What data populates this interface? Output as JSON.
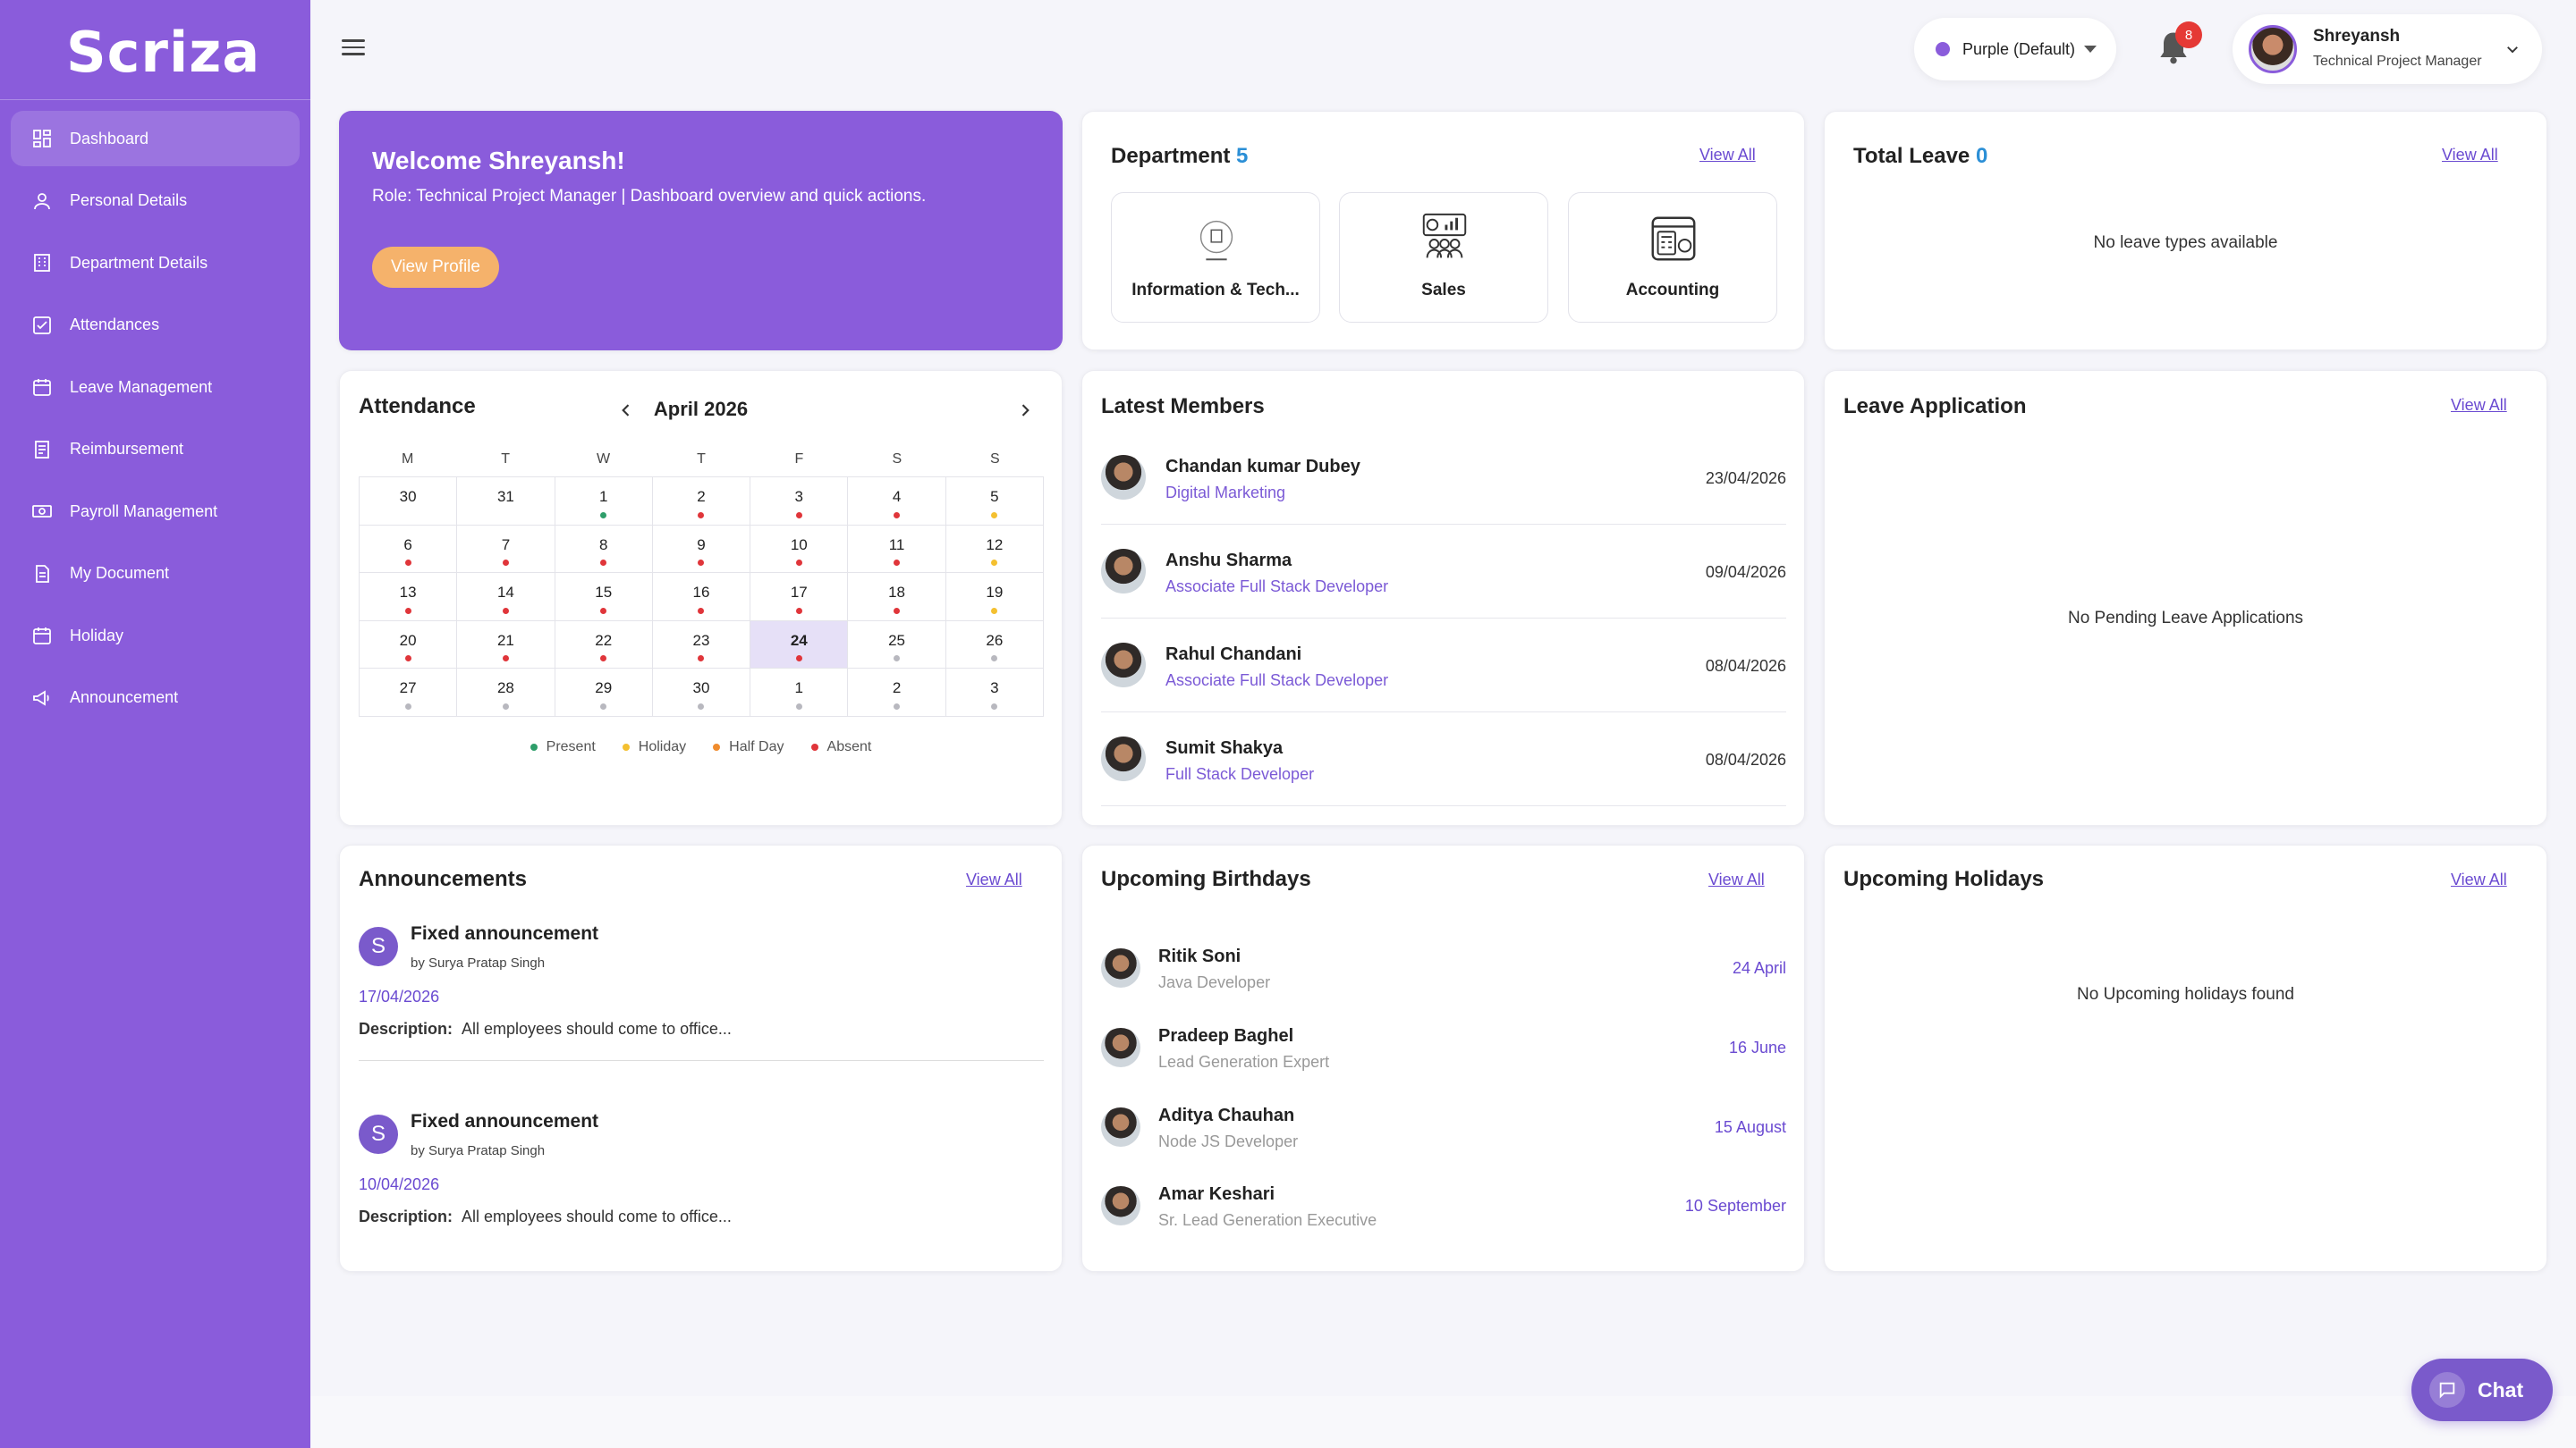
{
  "brand": {
    "logo": "Scriza"
  },
  "sidebar": {
    "items": [
      {
        "label": "Dashboard",
        "icon": "dashboard-icon"
      },
      {
        "label": "Personal Details",
        "icon": "user-icon"
      },
      {
        "label": "Department Details",
        "icon": "building-icon"
      },
      {
        "label": "Attendances",
        "icon": "checkbox-icon"
      },
      {
        "label": "Leave Management",
        "icon": "calendar-icon"
      },
      {
        "label": "Reimbursement",
        "icon": "receipt-icon"
      },
      {
        "label": "Payroll Management",
        "icon": "payroll-icon"
      },
      {
        "label": "My Document",
        "icon": "document-icon"
      },
      {
        "label": "Holiday",
        "icon": "calendar-icon"
      },
      {
        "label": "Announcement",
        "icon": "megaphone-icon"
      }
    ]
  },
  "header": {
    "theme_label": "Purple (Default)",
    "notification_count": "8",
    "user_name": "Shreyansh",
    "user_role": "Technical Project Manager"
  },
  "welcome": {
    "heading": "Welcome Shreyansh!",
    "role_line": "Role: Technical Project Manager | Dashboard overview and quick actions.",
    "button": "View Profile"
  },
  "department": {
    "title": "Department",
    "count": "5",
    "view_all": "View All",
    "items": [
      "Information & Tech...",
      "Sales",
      "Accounting"
    ]
  },
  "total_leave": {
    "title": "Total Leave",
    "count": "0",
    "view_all": "View All",
    "empty": "No leave types available"
  },
  "attendance": {
    "title": "Attendance",
    "month": "April 2026",
    "weekdays": [
      "M",
      "T",
      "W",
      "T",
      "F",
      "S",
      "S"
    ],
    "days": [
      {
        "d": "30",
        "s": ""
      },
      {
        "d": "31",
        "s": ""
      },
      {
        "d": "1",
        "s": "present"
      },
      {
        "d": "2",
        "s": "absent"
      },
      {
        "d": "3",
        "s": "absent"
      },
      {
        "d": "4",
        "s": "absent"
      },
      {
        "d": "5",
        "s": "holiday"
      },
      {
        "d": "6",
        "s": "absent"
      },
      {
        "d": "7",
        "s": "absent"
      },
      {
        "d": "8",
        "s": "absent"
      },
      {
        "d": "9",
        "s": "absent"
      },
      {
        "d": "10",
        "s": "absent"
      },
      {
        "d": "11",
        "s": "absent"
      },
      {
        "d": "12",
        "s": "holiday"
      },
      {
        "d": "13",
        "s": "absent"
      },
      {
        "d": "14",
        "s": "absent"
      },
      {
        "d": "15",
        "s": "absent"
      },
      {
        "d": "16",
        "s": "absent"
      },
      {
        "d": "17",
        "s": "absent"
      },
      {
        "d": "18",
        "s": "absent"
      },
      {
        "d": "19",
        "s": "holiday"
      },
      {
        "d": "20",
        "s": "absent"
      },
      {
        "d": "21",
        "s": "absent"
      },
      {
        "d": "22",
        "s": "absent"
      },
      {
        "d": "23",
        "s": "absent"
      },
      {
        "d": "24",
        "s": "absent",
        "today": true
      },
      {
        "d": "25",
        "s": "none"
      },
      {
        "d": "26",
        "s": "none"
      },
      {
        "d": "27",
        "s": "none"
      },
      {
        "d": "28",
        "s": "none"
      },
      {
        "d": "29",
        "s": "none"
      },
      {
        "d": "30",
        "s": "none"
      },
      {
        "d": "1",
        "s": "none"
      },
      {
        "d": "2",
        "s": "none"
      },
      {
        "d": "3",
        "s": "none"
      }
    ],
    "legend": [
      {
        "label": "Present",
        "color": "#2e9e6a"
      },
      {
        "label": "Holiday",
        "color": "#f4c030"
      },
      {
        "label": "Half Day",
        "color": "#f08c2e"
      },
      {
        "label": "Absent",
        "color": "#e0353a"
      }
    ],
    "dot_colors": {
      "present": "#2e9e6a",
      "holiday": "#f4c030",
      "absent": "#e0353a",
      "none": "#b8b8bf"
    }
  },
  "latest_members": {
    "title": "Latest Members",
    "items": [
      {
        "name": "Chandan kumar Dubey",
        "role": "Digital Marketing",
        "date": "23/04/2026"
      },
      {
        "name": "Anshu Sharma",
        "role": "Associate Full Stack Developer",
        "date": "09/04/2026"
      },
      {
        "name": "Rahul Chandani",
        "role": "Associate Full Stack Developer",
        "date": "08/04/2026"
      },
      {
        "name": "Sumit Shakya",
        "role": "Full Stack Developer",
        "date": "08/04/2026"
      }
    ]
  },
  "leave_application": {
    "title": "Leave Application",
    "view_all": "View All",
    "empty": "No Pending Leave Applications"
  },
  "announcements": {
    "title": "Announcements",
    "view_all": "View All",
    "items": [
      {
        "avatar": "S",
        "title": "Fixed announcement",
        "by": "by Surya Pratap Singh",
        "date": "17/04/2026",
        "desc_label": "Description:",
        "desc": "All employees should come to office..."
      },
      {
        "avatar": "S",
        "title": "Fixed announcement",
        "by": "by Surya Pratap Singh",
        "date": "10/04/2026",
        "desc_label": "Description:",
        "desc": "All employees should come to office..."
      }
    ]
  },
  "birthdays": {
    "title": "Upcoming Birthdays",
    "view_all": "View All",
    "items": [
      {
        "name": "Ritik Soni",
        "role": "Java Developer",
        "date": "24 April"
      },
      {
        "name": "Pradeep Baghel",
        "role": "Lead Generation Expert",
        "date": "16 June"
      },
      {
        "name": "Aditya Chauhan",
        "role": "Node JS Developer",
        "date": "15 August"
      },
      {
        "name": "Amar Keshari",
        "role": "Sr. Lead Generation Executive",
        "date": "10 September"
      }
    ]
  },
  "holidays": {
    "title": "Upcoming Holidays",
    "view_all": "View All",
    "empty": "No Upcoming holidays found"
  },
  "chat": {
    "label": "Chat"
  }
}
